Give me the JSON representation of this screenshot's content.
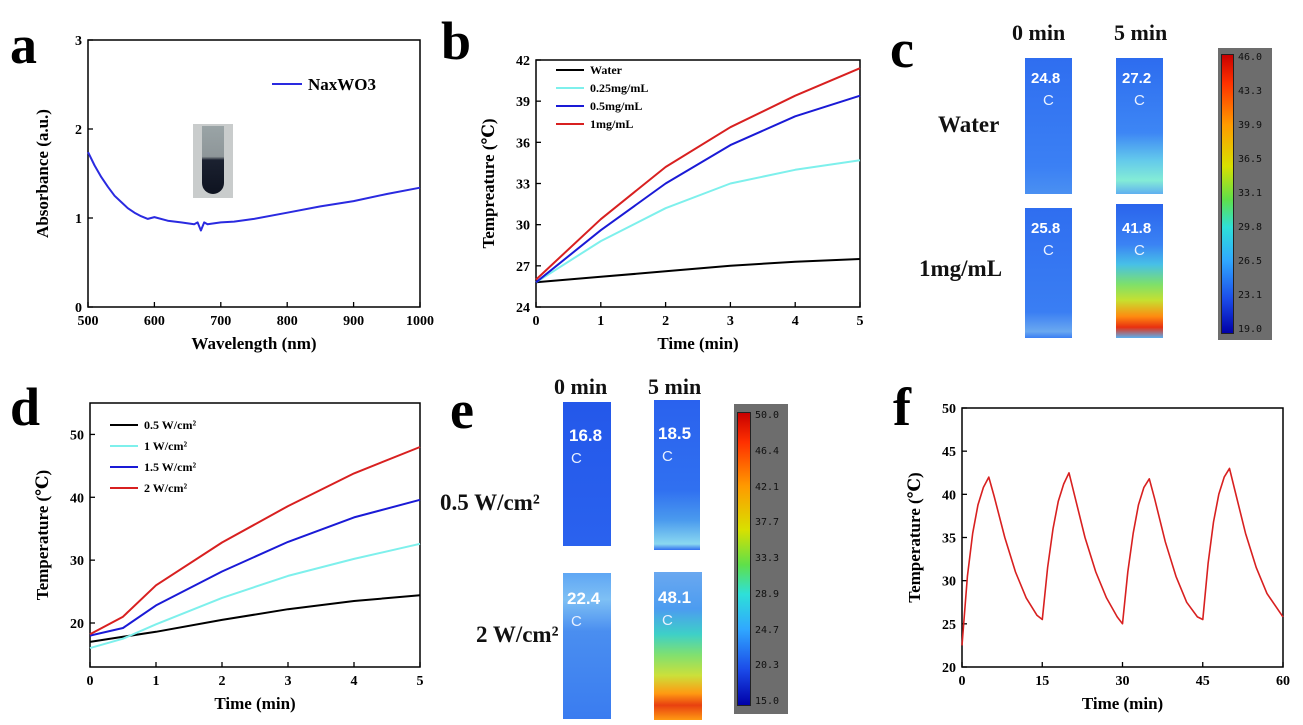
{
  "panels": {
    "a": {
      "letter": "a",
      "legend": "NaxWO3",
      "xlabel": "Wavelength (nm)",
      "ylabel": "Absorbance (a.u.)",
      "xticks": [
        "500",
        "600",
        "700",
        "800",
        "900",
        "1000"
      ],
      "yticks": [
        "0",
        "1",
        "2",
        "3"
      ]
    },
    "b": {
      "letter": "b",
      "xlabel": "Time (min)",
      "ylabel": "Tempreature (℃)",
      "xticks": [
        "0",
        "1",
        "2",
        "3",
        "4",
        "5"
      ],
      "yticks": [
        "24",
        "27",
        "30",
        "33",
        "36",
        "39",
        "42"
      ],
      "legend": [
        "Water",
        "0.25mg/mL",
        "0.5mg/mL",
        "1mg/mL"
      ]
    },
    "c": {
      "letter": "c",
      "headers": [
        "0 min",
        "5 min"
      ],
      "rows": [
        "Water",
        "1mg/mL"
      ],
      "values": [
        "24.8",
        "27.2",
        "25.8",
        "41.8"
      ],
      "unit": "C",
      "colorbar": [
        "46.0",
        "43.3",
        "39.9",
        "36.5",
        "33.1",
        "29.8",
        "26.5",
        "23.1",
        "19.0"
      ]
    },
    "d": {
      "letter": "d",
      "xlabel": "Time (min)",
      "ylabel": "Temperature (℃)",
      "xticks": [
        "0",
        "1",
        "2",
        "3",
        "4",
        "5"
      ],
      "yticks": [
        "20",
        "30",
        "40",
        "50"
      ],
      "legend": [
        "0.5 W/cm²",
        "1 W/cm²",
        "1.5 W/cm²",
        "2 W/cm²"
      ]
    },
    "e": {
      "letter": "e",
      "headers": [
        "0 min",
        "5 min"
      ],
      "rows": [
        "0.5 W/cm²",
        "2 W/cm²"
      ],
      "values": [
        "16.8",
        "18.5",
        "22.4",
        "48.1"
      ],
      "unit": "C",
      "colorbar": [
        "50.0",
        "46.4",
        "42.1",
        "37.7",
        "33.3",
        "28.9",
        "24.7",
        "20.3",
        "15.0"
      ]
    },
    "f": {
      "letter": "f",
      "xlabel": "Time (min)",
      "ylabel": "Temperature (℃)",
      "xticks": [
        "0",
        "15",
        "30",
        "45",
        "60"
      ],
      "yticks": [
        "20",
        "25",
        "30",
        "35",
        "40",
        "45",
        "50"
      ]
    }
  },
  "colors": {
    "black": "#000000",
    "cyan": "#7ef0ec",
    "blue": "#1a1ad6",
    "red": "#d82020"
  },
  "chart_data": [
    {
      "id": "a",
      "type": "line",
      "xlabel": "Wavelength (nm)",
      "ylabel": "Absorbance (a.u.)",
      "xlim": [
        500,
        1000
      ],
      "ylim": [
        0,
        3
      ],
      "series": [
        {
          "name": "NaxWO3",
          "color": "#2a2ae0",
          "x": [
            500,
            510,
            520,
            530,
            540,
            550,
            560,
            570,
            580,
            590,
            600,
            620,
            640,
            660,
            665,
            670,
            675,
            680,
            700,
            720,
            750,
            800,
            850,
            900,
            950,
            1000
          ],
          "y": [
            1.74,
            1.59,
            1.46,
            1.35,
            1.25,
            1.18,
            1.11,
            1.06,
            1.02,
            0.99,
            1.01,
            0.97,
            0.95,
            0.93,
            0.95,
            0.86,
            0.95,
            0.93,
            0.95,
            0.96,
            0.99,
            1.06,
            1.13,
            1.19,
            1.27,
            1.34
          ]
        }
      ]
    },
    {
      "id": "b",
      "type": "line",
      "xlabel": "Time (min)",
      "ylabel": "Tempreature (℃)",
      "xlim": [
        0,
        5
      ],
      "ylim": [
        24,
        42
      ],
      "legend_position": "top-left",
      "series": [
        {
          "name": "Water",
          "color": "#000000",
          "x": [
            0,
            1,
            2,
            3,
            4,
            5
          ],
          "y": [
            25.8,
            26.2,
            26.6,
            27.0,
            27.3,
            27.5
          ]
        },
        {
          "name": "0.25mg/mL",
          "color": "#7ef0ec",
          "x": [
            0,
            1,
            2,
            3,
            4,
            5
          ],
          "y": [
            25.8,
            28.8,
            31.2,
            33.0,
            34.0,
            34.7
          ]
        },
        {
          "name": "0.5mg/mL",
          "color": "#1a1ad6",
          "x": [
            0,
            1,
            2,
            3,
            4,
            5
          ],
          "y": [
            25.8,
            29.6,
            33.0,
            35.8,
            37.9,
            39.4
          ]
        },
        {
          "name": "1mg/mL",
          "color": "#d82020",
          "x": [
            0,
            1,
            2,
            3,
            4,
            5
          ],
          "y": [
            26.0,
            30.4,
            34.2,
            37.1,
            39.4,
            41.4
          ]
        }
      ]
    },
    {
      "id": "d",
      "type": "line",
      "xlabel": "Time (min)",
      "ylabel": "Temperature (℃)",
      "xlim": [
        0,
        5
      ],
      "ylim": [
        13,
        55
      ],
      "legend_position": "top-left",
      "series": [
        {
          "name": "0.5 W/cm²",
          "color": "#000000",
          "x": [
            0,
            0.5,
            1,
            2,
            3,
            4,
            5
          ],
          "y": [
            17.0,
            17.8,
            18.6,
            20.5,
            22.2,
            23.5,
            24.4
          ]
        },
        {
          "name": "1 W/cm²",
          "color": "#7ef0ec",
          "x": [
            0,
            0.5,
            1,
            2,
            3,
            4,
            5
          ],
          "y": [
            16.0,
            17.5,
            19.8,
            24.0,
            27.5,
            30.2,
            32.6
          ]
        },
        {
          "name": "1.5 W/cm²",
          "color": "#1a1ad6",
          "x": [
            0,
            0.5,
            1,
            2,
            3,
            4,
            5
          ],
          "y": [
            18.0,
            19.2,
            22.8,
            28.2,
            32.9,
            36.8,
            39.6
          ]
        },
        {
          "name": "2 W/cm²",
          "color": "#d82020",
          "x": [
            0,
            0.5,
            1,
            2,
            3,
            4,
            5
          ],
          "y": [
            18.2,
            21.0,
            26.0,
            32.8,
            38.6,
            43.8,
            48.0
          ]
        }
      ]
    },
    {
      "id": "f",
      "type": "line",
      "xlabel": "Time (min)",
      "ylabel": "Temperature (℃)",
      "xlim": [
        0,
        60
      ],
      "ylim": [
        20,
        50
      ],
      "series": [
        {
          "name": "",
          "color": "#d82020",
          "x": [
            0,
            1,
            2,
            3,
            4,
            5,
            6,
            8,
            10,
            12,
            14,
            15,
            16,
            17,
            18,
            19,
            20,
            21,
            23,
            25,
            27,
            29,
            30,
            31,
            32,
            33,
            34,
            35,
            36,
            38,
            40,
            42,
            44,
            45,
            46,
            47,
            48,
            49,
            50,
            51,
            53,
            55,
            57,
            60
          ],
          "y": [
            22.5,
            30.5,
            35.5,
            38.8,
            40.8,
            42.0,
            39.8,
            35.0,
            31.0,
            28.0,
            26.0,
            25.5,
            31.5,
            36.0,
            39.2,
            41.2,
            42.5,
            40.0,
            35.0,
            31.0,
            28.0,
            25.8,
            25.0,
            31.0,
            35.5,
            38.8,
            40.8,
            41.8,
            39.5,
            34.5,
            30.5,
            27.5,
            25.8,
            25.5,
            32.0,
            36.8,
            40.0,
            42.0,
            43.0,
            40.5,
            35.5,
            31.5,
            28.5,
            25.8
          ]
        }
      ]
    }
  ]
}
